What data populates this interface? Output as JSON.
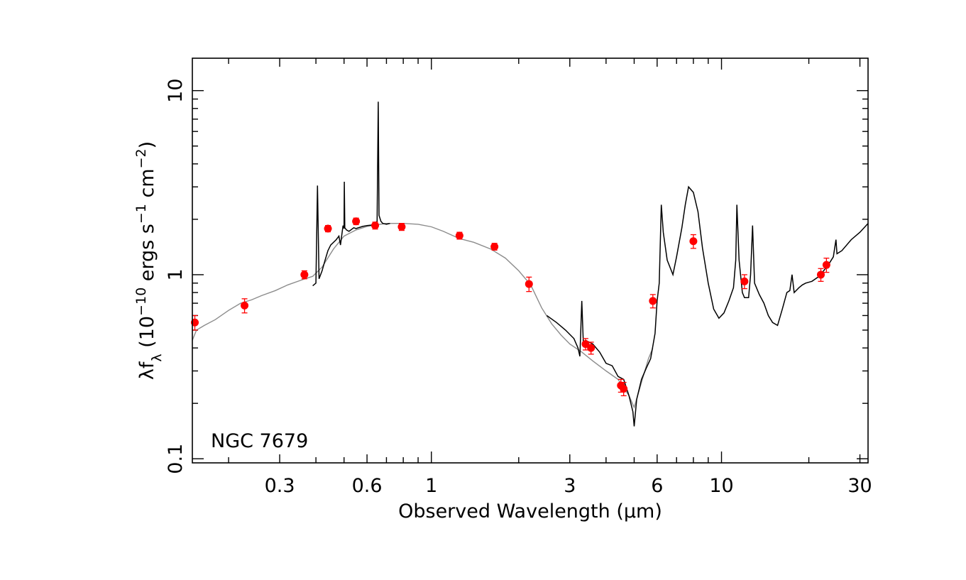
{
  "chart_data": {
    "type": "line",
    "xlabel": "Observed Wavelength (μm)",
    "ylabel": "λf_λ (10^-10 ergs s^-1 cm^-2)",
    "xscale": "log",
    "yscale": "log",
    "xlim": [
      0.15,
      32
    ],
    "ylim": [
      0.095,
      15
    ],
    "grid": false,
    "annotations": [
      "NGC 7679"
    ],
    "xticks": [
      {
        "value": 0.3,
        "label": "0.3"
      },
      {
        "value": 0.6,
        "label": "0.6"
      },
      {
        "value": 1,
        "label": "1"
      },
      {
        "value": 3,
        "label": "3"
      },
      {
        "value": 6,
        "label": "6"
      },
      {
        "value": 10,
        "label": "10"
      },
      {
        "value": 30,
        "label": "30"
      }
    ],
    "yticks": [
      {
        "value": 0.1,
        "label": "0.1"
      },
      {
        "value": 1,
        "label": "1"
      },
      {
        "value": 10,
        "label": "10"
      }
    ],
    "series": [
      {
        "kind": "model_spectrum",
        "color": "#8c8c8c",
        "points": [
          [
            0.15,
            0.44
          ],
          [
            0.155,
            0.5
          ],
          [
            0.165,
            0.53
          ],
          [
            0.18,
            0.57
          ],
          [
            0.2,
            0.64
          ],
          [
            0.22,
            0.7
          ],
          [
            0.24,
            0.73
          ],
          [
            0.26,
            0.77
          ],
          [
            0.29,
            0.82
          ],
          [
            0.32,
            0.88
          ],
          [
            0.36,
            0.94
          ],
          [
            0.39,
            0.98
          ],
          [
            0.42,
            1.1
          ],
          [
            0.46,
            1.38
          ],
          [
            0.5,
            1.62
          ],
          [
            0.55,
            1.75
          ],
          [
            0.6,
            1.83
          ],
          [
            0.65,
            1.87
          ],
          [
            0.7,
            1.9
          ],
          [
            0.8,
            1.9
          ],
          [
            0.9,
            1.88
          ],
          [
            1.0,
            1.82
          ],
          [
            1.1,
            1.72
          ],
          [
            1.25,
            1.57
          ],
          [
            1.4,
            1.5
          ],
          [
            1.6,
            1.38
          ],
          [
            1.8,
            1.23
          ],
          [
            2.0,
            1.05
          ],
          [
            2.2,
            0.88
          ],
          [
            2.4,
            0.66
          ],
          [
            2.6,
            0.54
          ],
          [
            2.8,
            0.47
          ],
          [
            3.0,
            0.42
          ],
          [
            3.3,
            0.38
          ],
          [
            3.6,
            0.34
          ],
          [
            4.0,
            0.3
          ],
          [
            4.4,
            0.27
          ],
          [
            4.8,
            0.22
          ],
          [
            5.0,
            0.19
          ],
          [
            5.3,
            0.26
          ],
          [
            5.6,
            0.35
          ],
          [
            5.8,
            0.4
          ]
        ]
      },
      {
        "kind": "observed_spectrum",
        "color": "#000000",
        "segments": [
          [
            [
              0.39,
              0.87
            ],
            [
              0.4,
              0.9
            ],
            [
              0.405,
              3.05
            ],
            [
              0.41,
              0.95
            ],
            [
              0.42,
              1.05
            ],
            [
              0.43,
              1.2
            ],
            [
              0.44,
              1.35
            ],
            [
              0.45,
              1.45
            ],
            [
              0.47,
              1.55
            ],
            [
              0.48,
              1.62
            ],
            [
              0.486,
              1.45
            ],
            [
              0.496,
              1.85
            ],
            [
              0.5,
              1.78
            ],
            [
              0.501,
              3.2
            ],
            [
              0.503,
              1.8
            ],
            [
              0.51,
              1.75
            ],
            [
              0.52,
              1.72
            ],
            [
              0.54,
              1.8
            ],
            [
              0.55,
              1.78
            ],
            [
              0.56,
              1.8
            ],
            [
              0.58,
              1.83
            ],
            [
              0.6,
              1.85
            ],
            [
              0.62,
              1.86
            ],
            [
              0.63,
              1.88
            ],
            [
              0.64,
              1.9
            ],
            [
              0.65,
              1.95
            ],
            [
              0.656,
              8.7
            ],
            [
              0.66,
              2.1
            ],
            [
              0.67,
              1.95
            ],
            [
              0.68,
              1.9
            ],
            [
              0.7,
              1.88
            ],
            [
              0.72,
              1.9
            ]
          ],
          [
            [
              2.5,
              0.6
            ],
            [
              2.7,
              0.55
            ],
            [
              2.9,
              0.5
            ],
            [
              3.1,
              0.45
            ],
            [
              3.2,
              0.4
            ],
            [
              3.25,
              0.36
            ],
            [
              3.3,
              0.72
            ],
            [
              3.34,
              0.42
            ],
            [
              3.4,
              0.44
            ],
            [
              3.5,
              0.43
            ],
            [
              3.6,
              0.42
            ],
            [
              3.8,
              0.38
            ],
            [
              4.0,
              0.33
            ],
            [
              4.2,
              0.32
            ],
            [
              4.4,
              0.28
            ],
            [
              4.6,
              0.27
            ],
            [
              4.8,
              0.22
            ],
            [
              4.95,
              0.18
            ],
            [
              5.0,
              0.15
            ],
            [
              5.1,
              0.21
            ],
            [
              5.3,
              0.27
            ],
            [
              5.5,
              0.31
            ],
            [
              5.7,
              0.35
            ],
            [
              5.9,
              0.48
            ],
            [
              6.0,
              0.72
            ],
            [
              6.1,
              0.9
            ],
            [
              6.2,
              2.4
            ],
            [
              6.3,
              1.7
            ],
            [
              6.5,
              1.2
            ],
            [
              6.8,
              1.0
            ],
            [
              7.0,
              1.25
            ],
            [
              7.3,
              1.8
            ],
            [
              7.5,
              2.4
            ],
            [
              7.7,
              3.0
            ],
            [
              8.0,
              2.8
            ],
            [
              8.3,
              2.2
            ],
            [
              8.6,
              1.4
            ],
            [
              9.0,
              0.9
            ],
            [
              9.4,
              0.65
            ],
            [
              9.8,
              0.58
            ],
            [
              10.2,
              0.62
            ],
            [
              10.6,
              0.72
            ],
            [
              11.0,
              0.85
            ],
            [
              11.2,
              1.2
            ],
            [
              11.3,
              2.4
            ],
            [
              11.5,
              1.2
            ],
            [
              11.8,
              0.8
            ],
            [
              12.0,
              0.75
            ],
            [
              12.4,
              0.75
            ],
            [
              12.6,
              1.0
            ],
            [
              12.8,
              1.85
            ],
            [
              13.0,
              0.9
            ],
            [
              13.5,
              0.78
            ],
            [
              14.0,
              0.7
            ],
            [
              14.5,
              0.6
            ],
            [
              15.0,
              0.55
            ],
            [
              15.6,
              0.53
            ],
            [
              16.2,
              0.65
            ],
            [
              16.8,
              0.8
            ],
            [
              17.2,
              0.82
            ],
            [
              17.5,
              1.0
            ],
            [
              17.8,
              0.8
            ],
            [
              18.5,
              0.85
            ],
            [
              19.0,
              0.88
            ],
            [
              19.5,
              0.9
            ],
            [
              20.5,
              0.92
            ],
            [
              21.5,
              0.97
            ],
            [
              22.5,
              1.05
            ],
            [
              23.5,
              1.15
            ],
            [
              24.3,
              1.25
            ],
            [
              24.8,
              1.55
            ],
            [
              25.0,
              1.3
            ],
            [
              26.0,
              1.35
            ],
            [
              28.0,
              1.55
            ],
            [
              30.0,
              1.7
            ],
            [
              32.0,
              1.9
            ]
          ]
        ]
      },
      {
        "kind": "photometry",
        "color": "#ff0000",
        "points": [
          {
            "x": 0.153,
            "y": 0.55,
            "err": 0.05
          },
          {
            "x": 0.227,
            "y": 0.68,
            "err": 0.06
          },
          {
            "x": 0.365,
            "y": 1.0,
            "err": 0.05
          },
          {
            "x": 0.44,
            "y": 1.78,
            "err": 0.07
          },
          {
            "x": 0.55,
            "y": 1.95,
            "err": 0.08
          },
          {
            "x": 0.64,
            "y": 1.85,
            "err": 0.08
          },
          {
            "x": 0.79,
            "y": 1.82,
            "err": 0.08
          },
          {
            "x": 1.25,
            "y": 1.63,
            "err": 0.07
          },
          {
            "x": 1.65,
            "y": 1.42,
            "err": 0.06
          },
          {
            "x": 2.17,
            "y": 0.89,
            "err": 0.08
          },
          {
            "x": 3.4,
            "y": 0.42,
            "err": 0.03
          },
          {
            "x": 3.55,
            "y": 0.4,
            "err": 0.03
          },
          {
            "x": 4.5,
            "y": 0.25,
            "err": 0.02
          },
          {
            "x": 4.6,
            "y": 0.24,
            "err": 0.02
          },
          {
            "x": 5.8,
            "y": 0.72,
            "err": 0.06
          },
          {
            "x": 8.0,
            "y": 1.52,
            "err": 0.13
          },
          {
            "x": 12.0,
            "y": 0.92,
            "err": 0.08
          },
          {
            "x": 22.0,
            "y": 1.0,
            "err": 0.08
          },
          {
            "x": 23.0,
            "y": 1.13,
            "err": 0.1
          }
        ]
      }
    ]
  }
}
